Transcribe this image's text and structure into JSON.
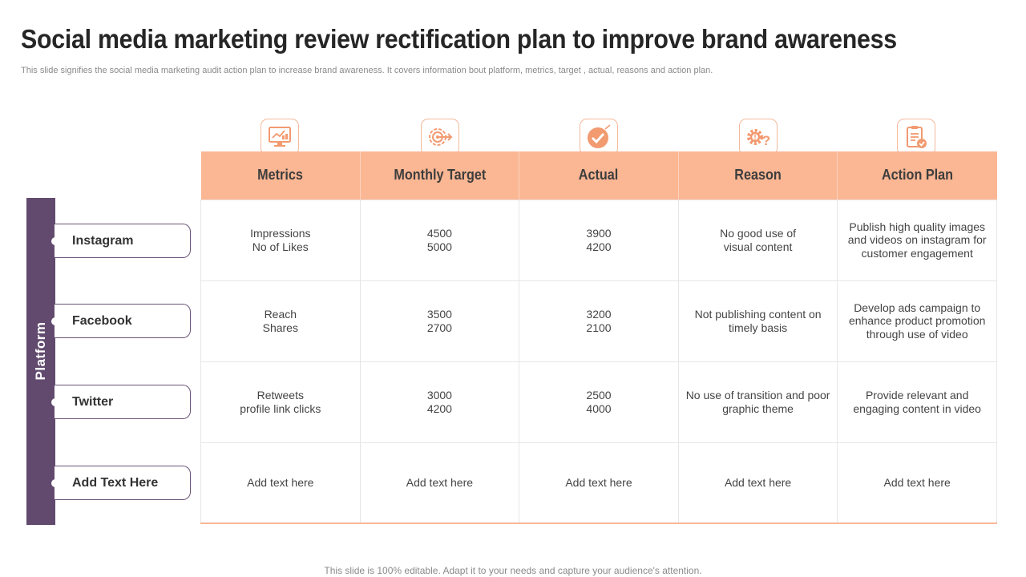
{
  "title": "Social media marketing review rectification plan to improve brand awareness",
  "subtitle": "This slide signifies the social media marketing audit action plan to increase brand awareness. It covers information bout platform, metrics, target , actual, reasons and action plan.",
  "platform": {
    "label": "Platform",
    "items": [
      "Instagram",
      "Facebook",
      "Twitter",
      "Add  Text Here"
    ]
  },
  "icons": [
    "dashboard-monitor-icon",
    "target-arrow-icon",
    "checkmark-badge-icon",
    "gear-question-icon",
    "clipboard-check-icon"
  ],
  "table": {
    "headers": [
      "Metrics",
      "Monthly Target",
      "Actual",
      "Reason",
      "Action Plan"
    ],
    "rows": [
      [
        "Impressions\nNo of Likes",
        "4500\n5000",
        "3900\n4200",
        "No good use of\nvisual content",
        "Publish high quality images and videos on instagram for customer engagement"
      ],
      [
        "Reach\nShares",
        "3500\n2700",
        "3200\n2100",
        "Not publishing content on timely basis",
        "Develop ads campaign to enhance product promotion through use of video"
      ],
      [
        "Retweets\nprofile link clicks",
        "3000\n4200",
        "2500\n4000",
        "No use of transition and poor graphic theme",
        "Provide relevant and engaging content in video"
      ],
      [
        "Add text here",
        "Add text here",
        "Add text here",
        "Add text here",
        "Add text here"
      ]
    ]
  },
  "footer": "This slide is 100% editable. Adapt it to your needs and capture your audience's attention.",
  "colors": {
    "accent": "#fbb693",
    "platform": "#624a6e",
    "icon": "#f29a70"
  }
}
